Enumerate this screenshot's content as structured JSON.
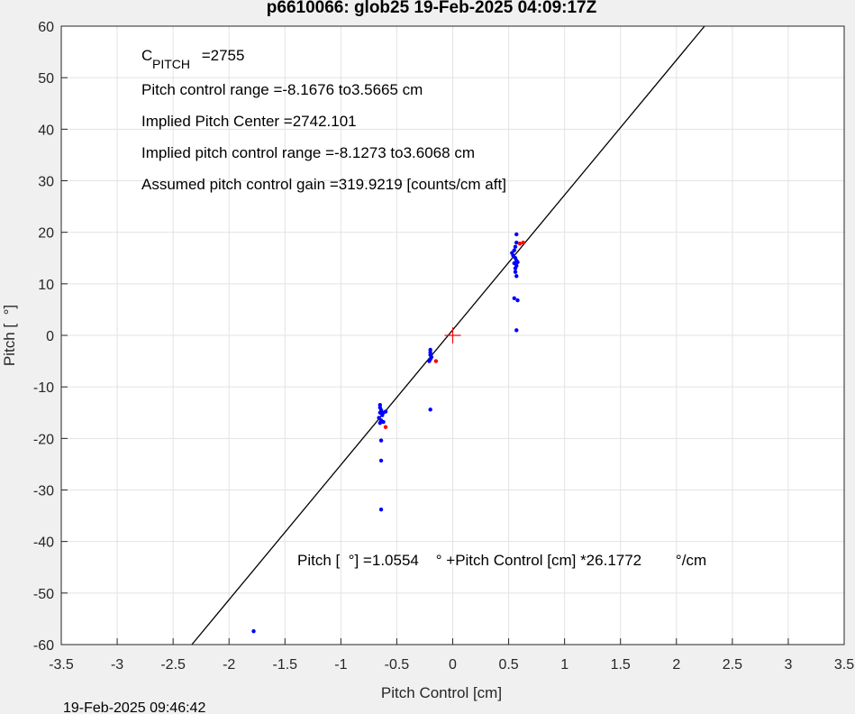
{
  "chart_data": {
    "type": "scatter",
    "title": "p6610066: glob25 19-Feb-2025 04:09:17Z",
    "x_label": "Pitch Control [cm]",
    "y_label": "Pitch [  °]",
    "timestamp": "19-Feb-2025 09:46:42",
    "cpitch": {
      "symbol": "C",
      "subscript": "PITCH",
      "value": " =2755"
    },
    "annotations": [
      "Pitch control range =-8.1676 to3.5665 cm",
      "Implied Pitch Center =2742.101",
      "Implied pitch control range =-8.1273 to3.6068 cm",
      "Assumed pitch control gain =319.9219 [counts/cm aft]"
    ],
    "equation": "Pitch [  °] =1.0554    ° +Pitch Control [cm] *26.1772        °/cm",
    "fit_line": {
      "intercept": 1.0554,
      "slope": 26.1772,
      "color": "#000000"
    },
    "center_marker": {
      "x": 0,
      "y": 0,
      "color": "#ff0000"
    },
    "grid": true,
    "xlim": [
      -3.5,
      3.5
    ],
    "ylim": [
      -60,
      60
    ],
    "xticks": [
      -3.5,
      -3,
      -2.5,
      -2,
      -1.5,
      -1,
      -0.5,
      0,
      0.5,
      1,
      1.5,
      2,
      2.5,
      3,
      3.5
    ],
    "yticks": [
      -60,
      -50,
      -40,
      -30,
      -20,
      -10,
      0,
      10,
      20,
      30,
      40,
      50,
      60
    ],
    "series": [
      {
        "color": "#0000ff",
        "x": [
          -0.65,
          -0.65,
          -0.64,
          -0.65,
          -0.63,
          -0.66,
          -0.64,
          -0.65,
          -0.62,
          -0.6,
          -0.62,
          -0.64,
          -0.64,
          -0.64,
          -0.2,
          -0.2,
          -0.2,
          -0.19,
          -0.2,
          -0.21,
          -0.2,
          0.57,
          0.57,
          0.56,
          0.55,
          0.53,
          0.54,
          0.56,
          0.57,
          0.55,
          0.57,
          0.56,
          0.58,
          0.56,
          0.57,
          0.55,
          0.58,
          0.57,
          -1.78
        ],
        "values": [
          -13.5,
          -14,
          -14.5,
          -15,
          -15.5,
          -16,
          -16.5,
          -17,
          -15,
          -14.8,
          -16.8,
          -20.4,
          -24.3,
          -33.8,
          -2.8,
          -3.3,
          -3.8,
          -4.2,
          -4.6,
          -5,
          -14.4,
          19.6,
          18,
          17.2,
          16.5,
          16,
          15.5,
          15,
          14.5,
          14,
          13.5,
          13,
          14.2,
          12.3,
          11.5,
          7.2,
          6.8,
          1,
          -57.4
        ]
      },
      {
        "color": "#ff0000",
        "x": [
          -0.6,
          -0.15,
          0.6,
          0.63
        ],
        "values": [
          -17.8,
          -5,
          17.8,
          18
        ]
      }
    ]
  }
}
